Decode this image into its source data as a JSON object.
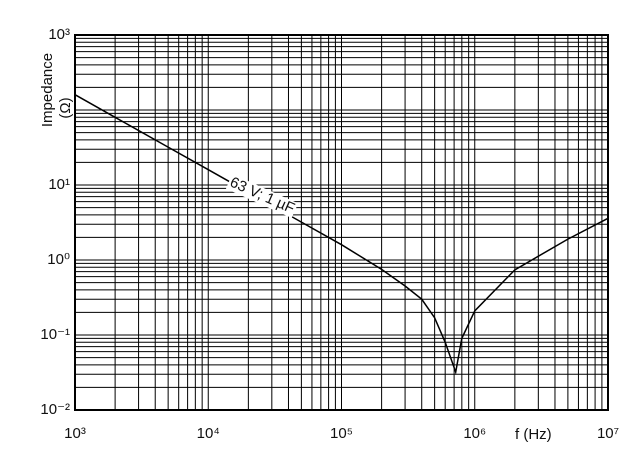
{
  "chart_data": {
    "type": "line",
    "x_label": "f (Hz)",
    "y_label": "Impedance",
    "y_unit": "(Ω)",
    "x": [
      1000,
      2000,
      5000,
      10000,
      20000,
      50000,
      100000,
      200000,
      300000,
      400000,
      500000,
      600000,
      720000,
      800000,
      1000000,
      2000000,
      5000000,
      10000000
    ],
    "series": [
      {
        "name": "63 V; 1 µF",
        "color": "#000000",
        "values": [
          160,
          80,
          32,
          16,
          8,
          3.2,
          1.6,
          0.75,
          0.45,
          0.3,
          0.17,
          0.08,
          0.032,
          0.09,
          0.21,
          0.74,
          1.9,
          3.6
        ]
      }
    ],
    "xscale": "log",
    "yscale": "log",
    "xlim": [
      1000,
      10000000
    ],
    "ylim": [
      0.01,
      1000
    ],
    "xticks": [
      {
        "value": 1000,
        "label": "10³"
      },
      {
        "value": 10000,
        "label": "10⁴"
      },
      {
        "value": 100000,
        "label": "10⁵"
      },
      {
        "value": 1000000,
        "label": "10⁶"
      },
      {
        "value": 10000000,
        "label": "10⁷"
      }
    ],
    "yticks": [
      {
        "value": 0.01,
        "label": "10⁻²"
      },
      {
        "value": 0.1,
        "label": "10⁻¹"
      },
      {
        "value": 1,
        "label": "10⁰"
      },
      {
        "value": 10,
        "label": "10¹"
      },
      {
        "value": 100,
        "label": null
      },
      {
        "value": 1000,
        "label": "10³"
      }
    ],
    "grid": true
  }
}
